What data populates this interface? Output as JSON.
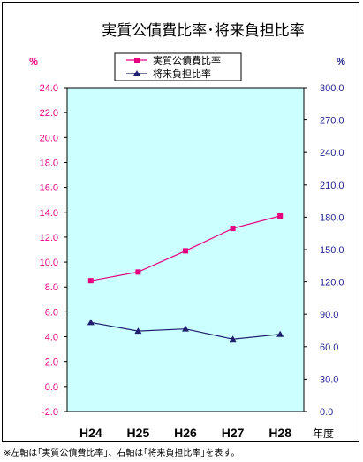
{
  "chart_data": {
    "type": "line",
    "title": "実質公債費比率･将来負担比率",
    "categories": [
      "H24",
      "H25",
      "H26",
      "H27",
      "H28"
    ],
    "x_unit_label": "年度",
    "left_axis": {
      "unit": "%",
      "ylim": [
        -2.0,
        24.0
      ],
      "ticks": [
        "24.0",
        "22.0",
        "20.0",
        "18.0",
        "16.0",
        "14.0",
        "12.0",
        "10.0",
        "8.0",
        "6.0",
        "4.0",
        "2.0",
        "0.0",
        "-2.0"
      ]
    },
    "right_axis": {
      "unit": "%",
      "ylim": [
        0.0,
        300.0
      ],
      "ticks": [
        "300.0",
        "270.0",
        "240.0",
        "210.0",
        "180.0",
        "150.0",
        "120.0",
        "90.0",
        "60.0",
        "30.0",
        "0.0"
      ]
    },
    "series": [
      {
        "name": "実質公債費比率",
        "axis": "left",
        "values": [
          8.5,
          9.2,
          10.9,
          12.7,
          13.7
        ],
        "color": "#e60080",
        "marker": "square"
      },
      {
        "name": "将来負担比率",
        "axis": "right",
        "values": [
          82.5,
          74.5,
          76.5,
          67.0,
          71.5
        ],
        "color": "#1f1f6f",
        "marker": "triangle"
      }
    ],
    "plot_background": "#ccffff",
    "legend_position": "top"
  },
  "footnote": "※左軸は｢実質公債費比率｣、右軸は｢将来負担比率｣を表す。"
}
